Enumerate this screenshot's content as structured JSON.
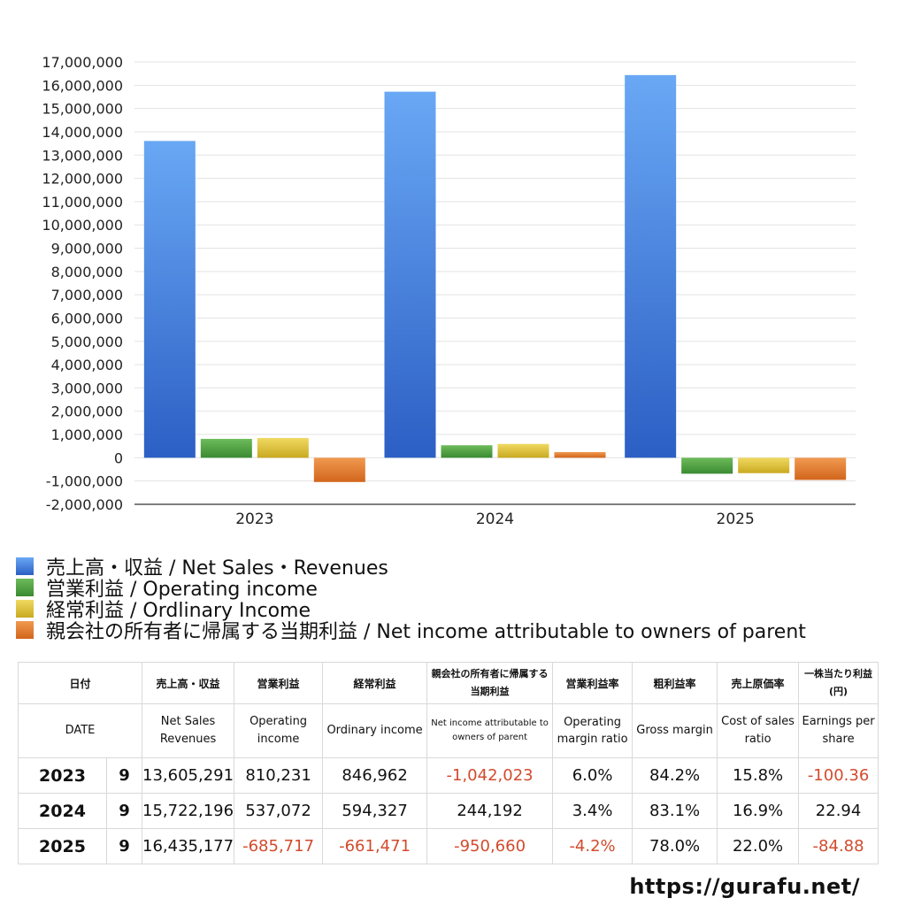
{
  "chart_data": {
    "type": "bar",
    "categories": [
      "2023",
      "2024",
      "2025"
    ],
    "ylim": [
      -2000000,
      17000000
    ],
    "yticks": [
      "17,000,000",
      "16,000,000",
      "15,000,000",
      "14,000,000",
      "13,000,000",
      "12,000,000",
      "11,000,000",
      "10,000,000",
      "9,000,000",
      "8,000,000",
      "7,000,000",
      "6,000,000",
      "5,000,000",
      "4,000,000",
      "3,000,000",
      "2,000,000",
      "1,000,000",
      "0",
      "-1,000,000",
      "-2,000,000"
    ],
    "ytick_values": [
      17000000,
      16000000,
      15000000,
      14000000,
      13000000,
      12000000,
      11000000,
      10000000,
      9000000,
      8000000,
      7000000,
      6000000,
      5000000,
      4000000,
      3000000,
      2000000,
      1000000,
      0,
      -1000000,
      -2000000
    ],
    "grid": true,
    "legend_position": "bottom-left",
    "series": [
      {
        "name": "売上高・収益 / Net Sales・Revenues",
        "values": [
          13605291,
          15722196,
          16435177
        ],
        "color": "#3a7fe0"
      },
      {
        "name": "営業利益 / Operating income",
        "values": [
          810231,
          537072,
          -685717
        ],
        "color": "#4a9a3e"
      },
      {
        "name": "経常利益 / Ordlinary Income",
        "values": [
          846962,
          594327,
          -661471
        ],
        "color": "#d9be33"
      },
      {
        "name": "親会社の所有者に帰属する当期利益 / Net income attributable to owners of parent",
        "values": [
          -1042023,
          244192,
          -950660
        ],
        "color": "#e07a2e"
      }
    ]
  },
  "table": {
    "headers_ja": [
      "日付",
      "売上高・収益",
      "営業利益",
      "経常利益",
      "親会社の所有者に帰属する当期利益",
      "営業利益率",
      "粗利益率",
      "売上原価率",
      "一株当たり利益(円)"
    ],
    "headers_en": [
      "DATE",
      "Net Sales Revenues",
      "Operating income",
      "Ordinary income",
      "Net income attributable to owners of parent",
      "Operating margin ratio",
      "Gross margin",
      "Cost of sales ratio",
      "Earnings per share"
    ],
    "rows": [
      {
        "year": "2023",
        "month": "9",
        "sales": "13,605,291",
        "op": "810,231",
        "ord": "846,962",
        "net": "-1,042,023",
        "opm": "6.0%",
        "gm": "84.2%",
        "cos": "15.8%",
        "eps": "-100.36"
      },
      {
        "year": "2024",
        "month": "9",
        "sales": "15,722,196",
        "op": "537,072",
        "ord": "594,327",
        "net": "244,192",
        "opm": "3.4%",
        "gm": "83.1%",
        "cos": "16.9%",
        "eps": "22.94"
      },
      {
        "year": "2025",
        "month": "9",
        "sales": "16,435,177",
        "op": "-685,717",
        "ord": "-661,471",
        "net": "-950,660",
        "opm": "-4.2%",
        "gm": "78.0%",
        "cos": "22.0%",
        "eps": "-84.88"
      }
    ]
  },
  "footer": {
    "url": "https://gurafu.net/"
  }
}
